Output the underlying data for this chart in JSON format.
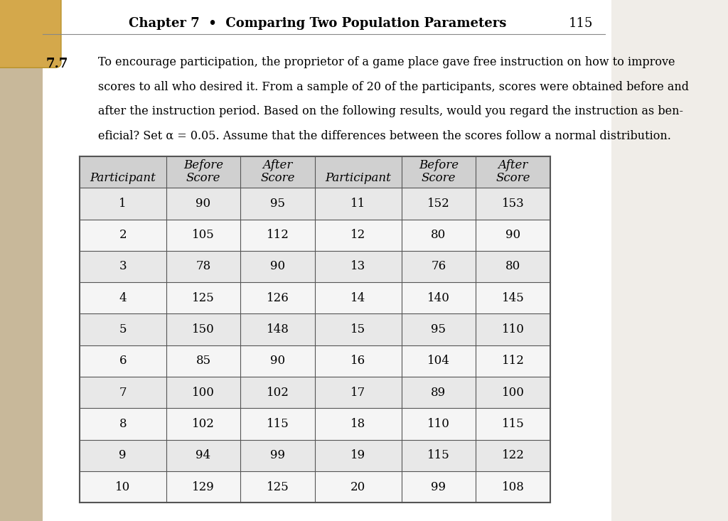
{
  "header_text": "Chapter 7  •  Comparing Two Population Parameters",
  "page_number": "115",
  "problem_number": "7.7",
  "problem_text": "To encourage participation, the proprietor of a game place gave free instruction on how to improve\nscores to all who desired it. From a sample of 20 of the participants, scores were obtained before and\nafter the instruction period. Based on the following results, would you regard the instruction as ben-\neficial? Set α = 0.05. Assume that the differences between the scores follow a normal distribution.",
  "col_headers": [
    "Participant",
    "Before\nScore",
    "After\nScore",
    "Participant",
    "Before\nScore",
    "After\nScore"
  ],
  "data": [
    [
      1,
      90,
      95,
      11,
      152,
      153
    ],
    [
      2,
      105,
      112,
      12,
      80,
      90
    ],
    [
      3,
      78,
      90,
      13,
      76,
      80
    ],
    [
      4,
      125,
      126,
      14,
      140,
      145
    ],
    [
      5,
      150,
      148,
      15,
      95,
      110
    ],
    [
      6,
      85,
      90,
      16,
      104,
      112
    ],
    [
      7,
      100,
      102,
      17,
      89,
      100
    ],
    [
      8,
      102,
      115,
      18,
      110,
      115
    ],
    [
      9,
      94,
      99,
      19,
      115,
      122
    ],
    [
      10,
      129,
      125,
      20,
      99,
      108
    ]
  ],
  "header_bg": "#d0d0d0",
  "row_bg_even": "#e8e8e8",
  "row_bg_odd": "#f5f5f5",
  "table_border": "#555555",
  "page_bg": "#f0ede8",
  "left_bg": "#c8b89a",
  "corner_color": "#d4a84b",
  "header_font_size": 12,
  "body_font_size": 12,
  "problem_font_size": 11.5,
  "title_font_size": 13
}
